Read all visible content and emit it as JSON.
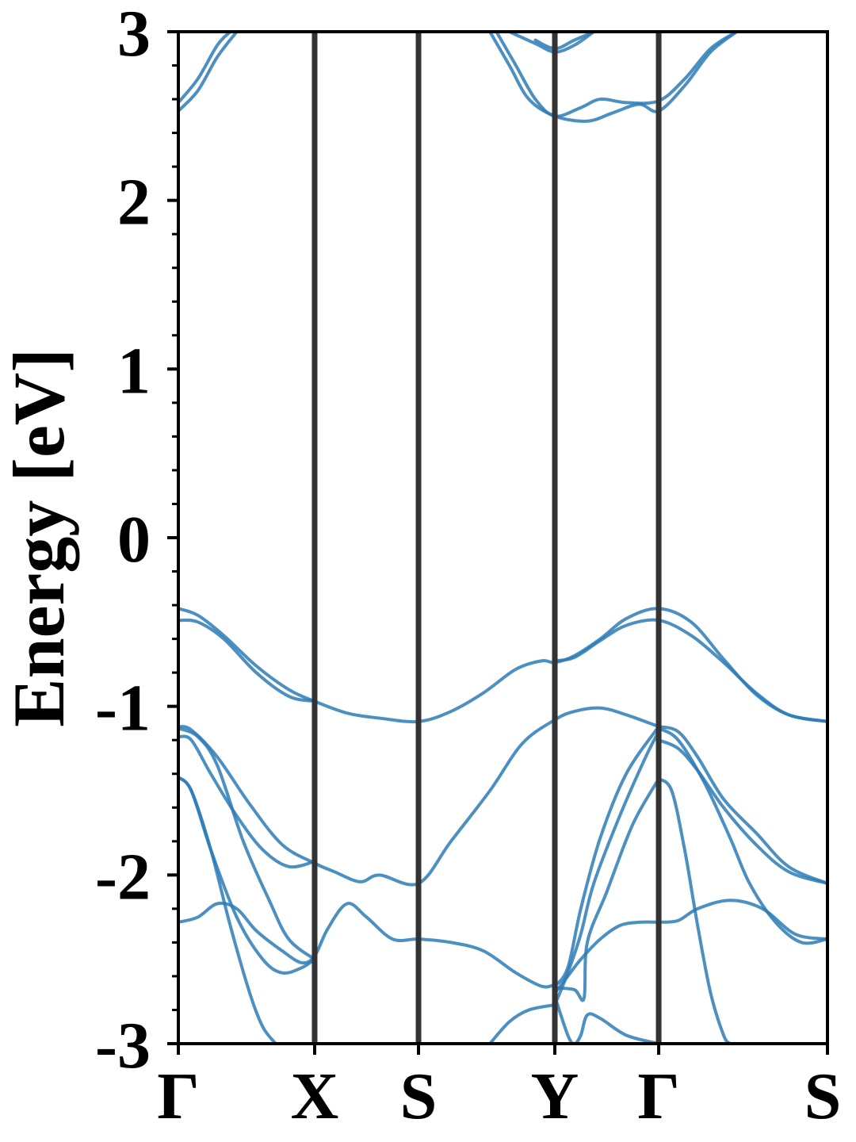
{
  "chart_data": {
    "type": "line",
    "title": "",
    "ylabel": "Energy [eV]",
    "xlabel": "",
    "ylim": [
      -3,
      3
    ],
    "yticks": [
      -3,
      -2,
      -1,
      0,
      1,
      2,
      3
    ],
    "ytick_labels": [
      "-3",
      "-2",
      "-1",
      "0",
      "1",
      "2",
      "3"
    ],
    "minor_ticks": true,
    "grid": false,
    "k_path": [
      {
        "label": "Γ",
        "x": 0.0
      },
      {
        "label": "X",
        "x": 0.21
      },
      {
        "label": "S",
        "x": 0.37
      },
      {
        "label": "Y",
        "x": 0.58
      },
      {
        "label": "Γ",
        "x": 0.74
      },
      {
        "label": "S",
        "x": 1.0
      }
    ],
    "line_color": "#2d7bb6",
    "divider_color": "#333333",
    "series": [
      {
        "x": [
          0,
          0.03,
          0.06,
          0.09
        ],
        "y": [
          2.53,
          2.65,
          2.85,
          3.0
        ]
      },
      {
        "x": [
          0,
          0.03,
          0.06,
          0.08
        ],
        "y": [
          2.58,
          2.72,
          2.92,
          3.0
        ]
      },
      {
        "x": [
          0.48,
          0.51,
          0.54,
          0.58,
          0.63,
          0.67,
          0.71,
          0.74,
          0.78,
          0.82,
          0.86
        ],
        "y": [
          3.0,
          2.8,
          2.6,
          2.5,
          2.47,
          2.52,
          2.57,
          2.53,
          2.68,
          2.88,
          3.0
        ]
      },
      {
        "x": [
          0.49,
          0.52,
          0.55,
          0.58,
          0.62,
          0.65,
          0.69,
          0.74,
          0.78,
          0.82,
          0.86
        ],
        "y": [
          3.0,
          2.8,
          2.6,
          2.5,
          2.55,
          2.6,
          2.58,
          2.59,
          2.72,
          2.9,
          3.0
        ]
      },
      {
        "x": [
          0.55,
          0.58,
          0.61,
          0.64
        ],
        "y": [
          2.95,
          2.9,
          2.95,
          3.0
        ]
      },
      {
        "x": [
          0.51,
          0.55,
          0.58,
          0.61,
          0.64
        ],
        "y": [
          3.0,
          2.93,
          2.88,
          2.92,
          3.0
        ]
      },
      {
        "x": [
          0,
          0.03,
          0.07,
          0.12,
          0.17,
          0.21,
          0.26,
          0.31,
          0.37,
          0.42,
          0.47,
          0.52,
          0.56,
          0.58,
          0.61,
          0.65,
          0.69,
          0.74,
          0.79,
          0.84,
          0.89,
          0.94,
          1.0
        ],
        "y": [
          -0.42,
          -0.46,
          -0.58,
          -0.76,
          -0.9,
          -0.97,
          -1.04,
          -1.07,
          -1.09,
          -1.03,
          -0.92,
          -0.78,
          -0.73,
          -0.74,
          -0.7,
          -0.6,
          -0.48,
          -0.42,
          -0.5,
          -0.72,
          -0.93,
          -1.05,
          -1.09
        ]
      },
      {
        "x": [
          0,
          0.03,
          0.07,
          0.12,
          0.17,
          0.21
        ],
        "y": [
          -0.49,
          -0.5,
          -0.6,
          -0.8,
          -0.94,
          -0.97
        ]
      },
      {
        "x": [
          0.58,
          0.61,
          0.65,
          0.69,
          0.74,
          0.79,
          0.84,
          0.89,
          0.94,
          1.0
        ],
        "y": [
          -0.73,
          -0.71,
          -0.61,
          -0.52,
          -0.49,
          -0.58,
          -0.74,
          -0.92,
          -1.05,
          -1.09
        ]
      },
      {
        "x": [
          0,
          0.02,
          0.06,
          0.11,
          0.16,
          0.21,
          0.24,
          0.28,
          0.31,
          0.37,
          0.42,
          0.48,
          0.53,
          0.58,
          0.61,
          0.65,
          0.69,
          0.74
        ],
        "y": [
          -1.12,
          -1.14,
          -1.3,
          -1.58,
          -1.82,
          -1.93,
          -1.98,
          -2.04,
          -2.0,
          -2.05,
          -1.8,
          -1.5,
          -1.22,
          -1.08,
          -1.03,
          -1.01,
          -1.05,
          -1.12
        ]
      },
      {
        "x": [
          0,
          0.02,
          0.05,
          0.09,
          0.13,
          0.17,
          0.21
        ],
        "y": [
          -1.18,
          -1.2,
          -1.4,
          -1.65,
          -1.85,
          -1.95,
          -1.92
        ]
      },
      {
        "x": [
          0,
          0.03,
          0.06,
          0.1,
          0.14,
          0.17,
          0.21
        ],
        "y": [
          -1.13,
          -1.18,
          -1.35,
          -1.8,
          -2.15,
          -2.38,
          -2.5
        ]
      },
      {
        "x": [
          0,
          0.02,
          0.05,
          0.08,
          0.11,
          0.13,
          0.15
        ],
        "y": [
          -1.42,
          -1.5,
          -1.85,
          -2.3,
          -2.7,
          -2.9,
          -3.0
        ]
      },
      {
        "x": [
          0,
          0.03,
          0.06,
          0.09,
          0.12,
          0.16,
          0.19,
          0.21,
          0.23,
          0.26,
          0.29,
          0.33,
          0.37,
          0.42,
          0.47,
          0.52,
          0.56,
          0.58
        ],
        "y": [
          -2.28,
          -2.25,
          -2.17,
          -2.2,
          -2.33,
          -2.45,
          -2.52,
          -2.48,
          -2.32,
          -2.17,
          -2.25,
          -2.38,
          -2.38,
          -2.4,
          -2.45,
          -2.58,
          -2.66,
          -2.65
        ]
      },
      {
        "x": [
          0,
          0.02,
          0.05,
          0.09,
          0.13,
          0.16,
          0.19,
          0.21
        ],
        "y": [
          -1.42,
          -1.5,
          -1.85,
          -2.25,
          -2.5,
          -2.58,
          -2.55,
          -2.5
        ]
      },
      {
        "x": [
          0.48,
          0.51,
          0.54,
          0.58
        ],
        "y": [
          -3.0,
          -2.87,
          -2.8,
          -2.77
        ]
      },
      {
        "x": [
          0.58,
          0.6,
          0.62,
          0.65,
          0.69,
          0.74
        ],
        "y": [
          -2.66,
          -2.55,
          -2.2,
          -1.78,
          -1.4,
          -1.12
        ]
      },
      {
        "x": [
          0.58,
          0.6,
          0.62,
          0.64,
          0.68,
          0.72,
          0.74
        ],
        "y": [
          -2.77,
          -2.58,
          -2.35,
          -2.05,
          -1.65,
          -1.3,
          -1.15
        ]
      },
      {
        "x": [
          0.58,
          0.6,
          0.62,
          0.65,
          0.68,
          0.71,
          0.74
        ],
        "y": [
          -2.7,
          -2.6,
          -2.5,
          -2.38,
          -2.3,
          -2.28,
          -2.28
        ]
      },
      {
        "x": [
          0.58,
          0.6,
          0.61,
          0.62,
          0.63,
          0.65,
          0.69,
          0.74
        ],
        "y": [
          -2.72,
          -2.95,
          -3.0,
          -2.95,
          -2.83,
          -2.85,
          -2.95,
          -3.0
        ]
      },
      {
        "x": [
          0.58,
          0.61,
          0.625,
          0.63,
          0.66,
          0.7,
          0.74
        ],
        "y": [
          -2.67,
          -2.68,
          -2.73,
          -2.4,
          -2.1,
          -1.7,
          -1.43
        ]
      },
      {
        "x": [
          0.74,
          0.76,
          0.78,
          0.8,
          0.82,
          0.84,
          0.85
        ],
        "y": [
          -1.43,
          -1.5,
          -1.85,
          -2.3,
          -2.7,
          -2.95,
          -3.0
        ]
      },
      {
        "x": [
          0.74,
          0.77,
          0.8,
          0.84,
          0.89,
          0.94,
          1.0
        ],
        "y": [
          -1.12,
          -1.15,
          -1.3,
          -1.55,
          -1.75,
          -1.95,
          -2.05
        ]
      },
      {
        "x": [
          0.74,
          0.77,
          0.8,
          0.84,
          0.89,
          0.94,
          1.0
        ],
        "y": [
          -1.2,
          -1.25,
          -1.38,
          -1.6,
          -1.82,
          -1.98,
          -2.05
        ]
      },
      {
        "x": [
          0.74,
          0.77,
          0.81,
          0.85,
          0.88,
          0.92,
          0.96,
          1.0
        ],
        "y": [
          -1.13,
          -1.2,
          -1.45,
          -1.78,
          -2.05,
          -2.28,
          -2.4,
          -2.38
        ]
      },
      {
        "x": [
          0.74,
          0.77,
          0.8,
          0.85,
          0.9,
          0.95,
          1.0
        ],
        "y": [
          -2.28,
          -2.27,
          -2.2,
          -2.15,
          -2.2,
          -2.35,
          -2.38
        ]
      }
    ]
  }
}
